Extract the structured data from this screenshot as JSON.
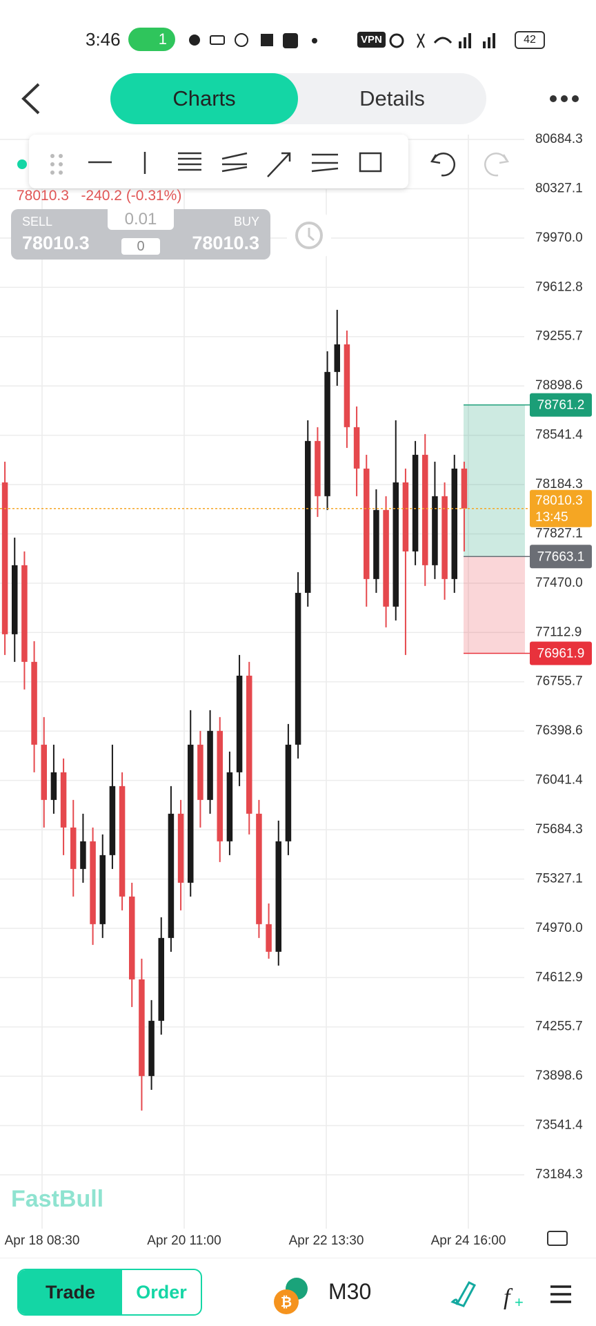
{
  "status_bar": {
    "time": "3:46",
    "hotspot_count": "1",
    "vpn": "VPN",
    "battery": "42"
  },
  "tabs": [
    "Charts",
    "Details"
  ],
  "quote": {
    "price": "78010.3",
    "change": "-240.2 (-0.31%)"
  },
  "trade_panel": {
    "sell_label": "SELL",
    "sell_price": "78010.3",
    "buy_label": "BUY",
    "buy_price": "78010.3",
    "lot": "0.01",
    "spread": "0"
  },
  "chart_data": {
    "type": "candlestick",
    "x_labels": [
      "Apr 18 08:30",
      "Apr 20 11:00",
      "Apr 22 13:30",
      "Apr 24 16:00"
    ],
    "candles": [
      {
        "open": 78200,
        "high": 78350,
        "low": 76950,
        "close": 77100
      },
      {
        "open": 77100,
        "high": 77800,
        "low": 76900,
        "close": 77600
      },
      {
        "open": 77600,
        "high": 77700,
        "low": 76700,
        "close": 76900
      },
      {
        "open": 76900,
        "high": 77050,
        "low": 76100,
        "close": 76300
      },
      {
        "open": 76300,
        "high": 76500,
        "low": 75700,
        "close": 75900
      },
      {
        "open": 75900,
        "high": 76300,
        "low": 75800,
        "close": 76100
      },
      {
        "open": 76100,
        "high": 76200,
        "low": 75500,
        "close": 75700
      },
      {
        "open": 75700,
        "high": 75900,
        "low": 75200,
        "close": 75400
      },
      {
        "open": 75400,
        "high": 75800,
        "low": 75300,
        "close": 75600
      },
      {
        "open": 75600,
        "high": 75700,
        "low": 74850,
        "close": 75000
      },
      {
        "open": 75000,
        "high": 75650,
        "low": 74900,
        "close": 75500
      },
      {
        "open": 75500,
        "high": 76300,
        "low": 75400,
        "close": 76000
      },
      {
        "open": 76000,
        "high": 76100,
        "low": 75100,
        "close": 75200
      },
      {
        "open": 75200,
        "high": 75300,
        "low": 74400,
        "close": 74600
      },
      {
        "open": 74600,
        "high": 74750,
        "low": 73650,
        "close": 73900
      },
      {
        "open": 73900,
        "high": 74450,
        "low": 73800,
        "close": 74300
      },
      {
        "open": 74300,
        "high": 75050,
        "low": 74200,
        "close": 74900
      },
      {
        "open": 74900,
        "high": 76000,
        "low": 74800,
        "close": 75800
      },
      {
        "open": 75800,
        "high": 75900,
        "low": 75100,
        "close": 75300
      },
      {
        "open": 75300,
        "high": 76550,
        "low": 75200,
        "close": 76300
      },
      {
        "open": 76300,
        "high": 76400,
        "low": 75700,
        "close": 75900
      },
      {
        "open": 75900,
        "high": 76550,
        "low": 75800,
        "close": 76400
      },
      {
        "open": 76400,
        "high": 76500,
        "low": 75450,
        "close": 75600
      },
      {
        "open": 75600,
        "high": 76250,
        "low": 75500,
        "close": 76100
      },
      {
        "open": 76100,
        "high": 76950,
        "low": 76000,
        "close": 76800
      },
      {
        "open": 76800,
        "high": 76900,
        "low": 75650,
        "close": 75800
      },
      {
        "open": 75800,
        "high": 75900,
        "low": 74900,
        "close": 75000
      },
      {
        "open": 75000,
        "high": 75150,
        "low": 74750,
        "close": 74800
      },
      {
        "open": 74800,
        "high": 75750,
        "low": 74700,
        "close": 75600
      },
      {
        "open": 75600,
        "high": 76450,
        "low": 75500,
        "close": 76300
      },
      {
        "open": 76300,
        "high": 77550,
        "low": 76200,
        "close": 77400
      },
      {
        "open": 77400,
        "high": 78650,
        "low": 77300,
        "close": 78500
      },
      {
        "open": 78500,
        "high": 78600,
        "low": 77950,
        "close": 78100
      },
      {
        "open": 78100,
        "high": 79150,
        "low": 78000,
        "close": 79000
      },
      {
        "open": 79000,
        "high": 79450,
        "low": 78900,
        "close": 79200
      },
      {
        "open": 79200,
        "high": 79300,
        "low": 78450,
        "close": 78600
      },
      {
        "open": 78600,
        "high": 78750,
        "low": 78100,
        "close": 78300
      },
      {
        "open": 78300,
        "high": 78400,
        "low": 77300,
        "close": 77500
      },
      {
        "open": 77500,
        "high": 78150,
        "low": 77400,
        "close": 78000
      },
      {
        "open": 78000,
        "high": 78100,
        "low": 77150,
        "close": 77300
      },
      {
        "open": 77300,
        "high": 78650,
        "low": 77200,
        "close": 78200
      },
      {
        "open": 78200,
        "high": 78300,
        "low": 76950,
        "close": 77700
      },
      {
        "open": 77700,
        "high": 78500,
        "low": 77600,
        "close": 78400
      },
      {
        "open": 78400,
        "high": 78550,
        "low": 77450,
        "close": 77600
      },
      {
        "open": 77600,
        "high": 78350,
        "low": 77500,
        "close": 78100
      },
      {
        "open": 78100,
        "high": 78200,
        "low": 77350,
        "close": 77500
      },
      {
        "open": 77500,
        "high": 78400,
        "low": 77400,
        "close": 78300
      },
      {
        "open": 78300,
        "high": 78350,
        "low": 77700,
        "close": 78010.3
      }
    ],
    "ylim": [
      73184.3,
      80684.3
    ],
    "yticks": [
      80684.3,
      80327.1,
      {
        "value": 79970.0,
        "label": "79970.0"
      },
      79612.8,
      79255.7,
      78898.6,
      78541.4,
      78184.3,
      77827.1,
      {
        "value": 77470.0,
        "label": "77470.0"
      },
      77112.9,
      76755.7,
      76398.6,
      76041.4,
      75684.3,
      75327.1,
      {
        "value": 74970.0,
        "label": "74970.0"
      },
      74612.9,
      74255.7,
      73898.6,
      73541.4,
      73184.3
    ],
    "up_color": "#1a1a1a",
    "down_color": "#e5484d",
    "levels": [
      {
        "value": 78761.2,
        "color": "#1b9e77"
      },
      {
        "value": 77663.1,
        "color": "#6b6e75"
      },
      {
        "value": 76961.9,
        "color": "#e8323c"
      }
    ],
    "current": {
      "value": 78010.3,
      "timer": "13:45",
      "color": "#f5a623"
    }
  },
  "watermark": "FastBull",
  "bottom_bar": {
    "trade": "Trade",
    "order": "Order",
    "timeframe": "M30"
  }
}
